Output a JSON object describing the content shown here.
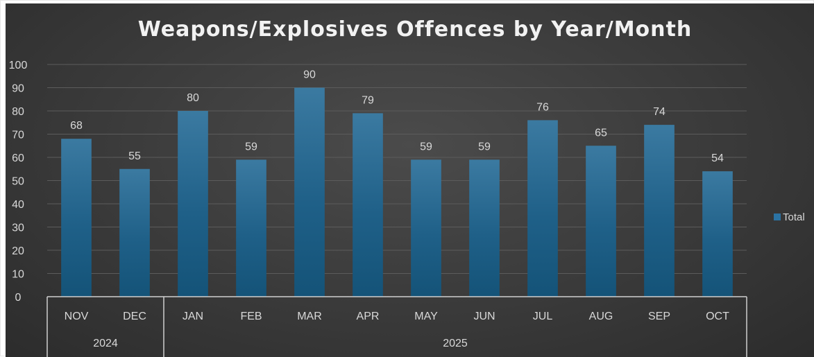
{
  "chart_data": {
    "type": "bar",
    "title": "Weapons/Explosives Offences by Year/Month",
    "categories": [
      "NOV",
      "DEC",
      "JAN",
      "FEB",
      "MAR",
      "APR",
      "MAY",
      "JUN",
      "JUL",
      "AUG",
      "SEP",
      "OCT"
    ],
    "groups": [
      {
        "label": "2024",
        "categories": [
          "NOV",
          "DEC"
        ]
      },
      {
        "label": "2025",
        "categories": [
          "JAN",
          "FEB",
          "MAR",
          "APR",
          "MAY",
          "JUN",
          "JUL",
          "AUG",
          "SEP",
          "OCT"
        ]
      }
    ],
    "series": [
      {
        "name": "Total",
        "values": [
          68,
          55,
          80,
          59,
          90,
          79,
          59,
          59,
          76,
          65,
          74,
          54
        ]
      }
    ],
    "ylim": [
      0,
      100
    ],
    "yticks": [
      0,
      10,
      20,
      30,
      40,
      50,
      60,
      70,
      80,
      90,
      100
    ],
    "grid": true,
    "legend": "right",
    "colors": {
      "bar": "#1f5f86",
      "bar_light": "#3a7ba3",
      "background": "#3a3a3a",
      "text": "#d9d9d9"
    }
  }
}
